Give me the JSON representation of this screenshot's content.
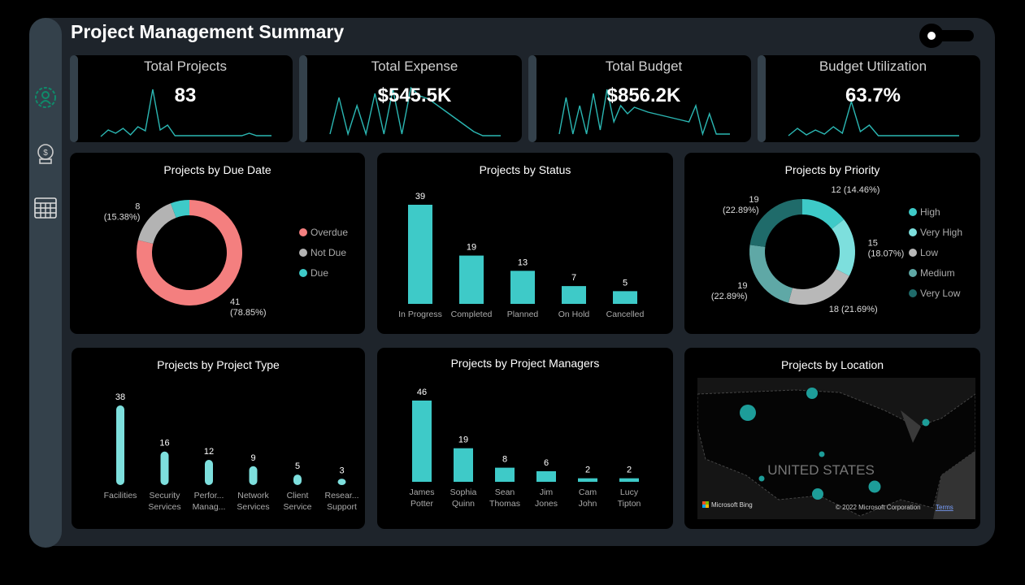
{
  "header": {
    "title": "Project Management Summary",
    "theme_toggle": "sun-icon"
  },
  "sidebar": {
    "items": [
      {
        "icon": "gear-person-icon",
        "active": true
      },
      {
        "icon": "money-bag-icon"
      },
      {
        "icon": "table-icon"
      }
    ]
  },
  "kpis": [
    {
      "label": "Total Projects",
      "value": "83",
      "spark": [
        2,
        10,
        6,
        12,
        4,
        14,
        9,
        60,
        10,
        16,
        3,
        3,
        3,
        3,
        3,
        3,
        3,
        3,
        3,
        3,
        6,
        3,
        3,
        3
      ]
    },
    {
      "label": "Total Expense",
      "value": "$545.5K",
      "spark": [
        5,
        50,
        5,
        40,
        5,
        55,
        5,
        60,
        5,
        62,
        52,
        48,
        40,
        32,
        24,
        16,
        8,
        3,
        3,
        3
      ]
    },
    {
      "label": "Total Budget",
      "value": "$856.2K",
      "spark": [
        5,
        50,
        5,
        40,
        5,
        55,
        10,
        60,
        20,
        40,
        30,
        38,
        35,
        32,
        30,
        28,
        26,
        24,
        22,
        20,
        40,
        5,
        30,
        5,
        5,
        5
      ]
    },
    {
      "label": "Budget Utilization",
      "value": "63.7%",
      "spark": [
        3,
        12,
        4,
        10,
        5,
        14,
        6,
        45,
        8,
        16,
        3,
        3,
        3,
        3,
        3,
        3,
        3,
        3,
        3,
        3
      ]
    }
  ],
  "colors": {
    "accent": "#3ecac8",
    "overdue": "#f47f7f",
    "gray": "#b8b8b8"
  },
  "chart_data": [
    {
      "type": "pie",
      "title": "Projects by Due Date",
      "donut": true,
      "slices": [
        {
          "name": "Overdue",
          "value": 41,
          "label": "41",
          "pct": "(78.85%)",
          "color": "#f47f7f"
        },
        {
          "name": "Not Due",
          "value": 8,
          "label": "8",
          "pct": "(15.38%)",
          "color": "#b3b3b3"
        },
        {
          "name": "Due",
          "value": 3,
          "color": "#3ecac8"
        }
      ],
      "legend": "right"
    },
    {
      "type": "bar",
      "title": "Projects by Status",
      "categories": [
        "In Progress",
        "Completed",
        "Planned",
        "On Hold",
        "Cancelled"
      ],
      "values": [
        39,
        19,
        13,
        7,
        5
      ],
      "color": "#3ecac8"
    },
    {
      "type": "pie",
      "title": "Projects by Priority",
      "donut": true,
      "slices": [
        {
          "name": "High",
          "value": 12,
          "label": "12 (14.46%)",
          "color": "#3ecac8"
        },
        {
          "name": "Very High",
          "value": 15,
          "label": "15",
          "pct": "(18.07%)",
          "color": "#7ddfdd"
        },
        {
          "name": "Low",
          "value": 18,
          "label": "18 (21.69%)",
          "color": "#b8b8b8"
        },
        {
          "name": "Medium",
          "value": 19,
          "label": "19",
          "pct": "(22.89%)",
          "color": "#5fa8a6"
        },
        {
          "name": "Very Low",
          "value": 19,
          "label": "19",
          "pct": "(22.89%)",
          "color": "#1f6b6a"
        }
      ],
      "legend": "right"
    },
    {
      "type": "bar",
      "title": "Projects by Project Type",
      "categories": [
        [
          "Facilities"
        ],
        [
          "Security",
          "Services"
        ],
        [
          "Perfor...",
          "Manag..."
        ],
        [
          "Network",
          "Services"
        ],
        [
          "Client",
          "Service"
        ],
        [
          "Resear...",
          "Support"
        ]
      ],
      "values": [
        38,
        16,
        12,
        9,
        5,
        3
      ],
      "color": "#7ddfdd"
    },
    {
      "type": "bar",
      "title": "Projects by Project Managers",
      "categories": [
        [
          "James",
          "Potter"
        ],
        [
          "Sophia",
          "Quinn"
        ],
        [
          "Sean",
          "Thomas"
        ],
        [
          "Jim",
          "Jones"
        ],
        [
          "Cam",
          "John"
        ],
        [
          "Lucy",
          "Tipton"
        ]
      ],
      "values": [
        46,
        19,
        8,
        6,
        2,
        2
      ],
      "color": "#3ecac8"
    }
  ],
  "map": {
    "title": "Projects by Location",
    "country_label": "UNITED STATES",
    "bing": "Microsoft Bing",
    "copyright": "© 2022 Microsoft Corporation",
    "terms": "Terms"
  }
}
